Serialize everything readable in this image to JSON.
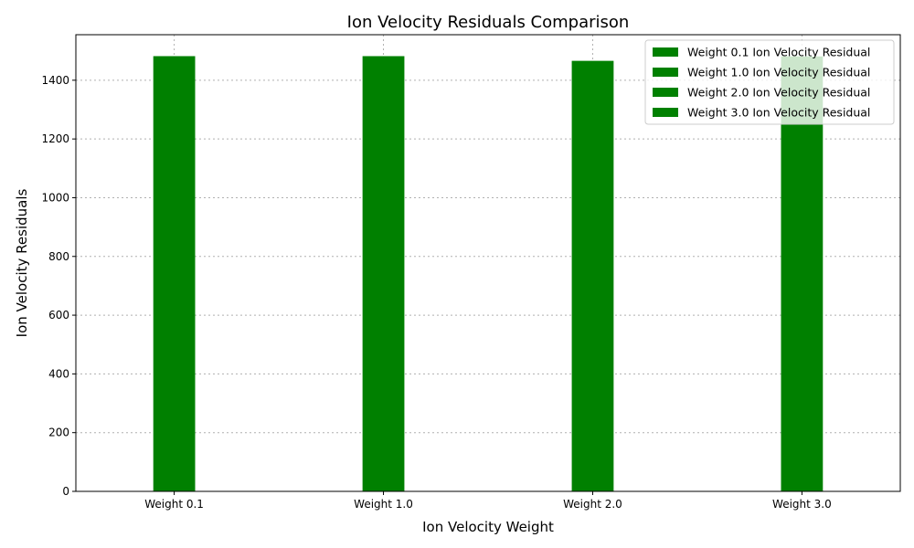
{
  "chart_data": {
    "type": "bar",
    "title": "Ion Velocity Residuals Comparison",
    "xlabel": "Ion Velocity Weight",
    "ylabel": "Ion Velocity Residuals",
    "categories": [
      "Weight 0.1",
      "Weight 1.0",
      "Weight 2.0",
      "Weight 3.0"
    ],
    "series": [
      {
        "name": "Weight 0.1 Ion Velocity Residual",
        "values": [
          1482,
          null,
          null,
          null
        ]
      },
      {
        "name": "Weight 1.0 Ion Velocity Residual",
        "values": [
          null,
          1482,
          null,
          null
        ]
      },
      {
        "name": "Weight 2.0 Ion Velocity Residual",
        "values": [
          null,
          null,
          1466,
          null
        ]
      },
      {
        "name": "Weight 3.0 Ion Velocity Residual",
        "values": [
          null,
          null,
          null,
          1481
        ]
      }
    ],
    "ylim": [
      0,
      1555
    ],
    "yticks": [
      0,
      200,
      400,
      600,
      800,
      1000,
      1200,
      1400
    ],
    "grid": true,
    "legend": "top-right",
    "bar_color": "#008000"
  }
}
